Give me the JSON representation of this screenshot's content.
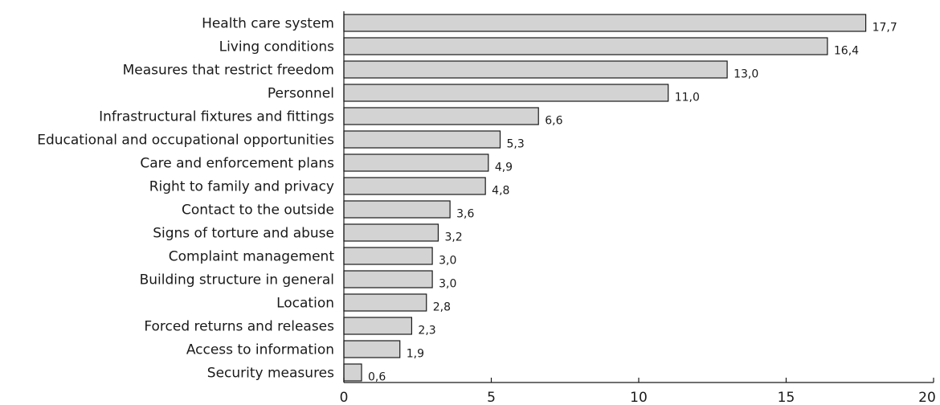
{
  "chart_data": {
    "type": "bar",
    "orientation": "horizontal",
    "categories": [
      "Health care system",
      "Living conditions",
      "Measures that restrict freedom",
      "Personnel",
      "Infrastructural fixtures and fittings",
      "Educational and occupational opportunities",
      "Care and enforcement plans",
      "Right to family and privacy",
      "Contact to the outside",
      "Signs of torture and abuse",
      "Complaint management",
      "Building structure in general",
      "Location",
      "Forced returns and releases",
      "Access to information",
      "Security measures"
    ],
    "values": [
      17.7,
      16.4,
      13.0,
      11.0,
      6.6,
      5.3,
      4.9,
      4.8,
      3.6,
      3.2,
      3.0,
      3.0,
      2.8,
      2.3,
      1.9,
      0.6
    ],
    "value_labels": [
      "17,7",
      "16,4",
      "13,0",
      "11,0",
      "6,6",
      "5,3",
      "4,9",
      "4,8",
      "3,6",
      "3,2",
      "3,0",
      "3,0",
      "2,8",
      "2,3",
      "1,9",
      "0,6"
    ],
    "xticks": [
      0,
      5,
      10,
      15,
      20
    ],
    "xtick_labels": [
      "0",
      "5",
      "10",
      "15",
      "20"
    ],
    "xlim": [
      0,
      20
    ],
    "title": "",
    "xlabel": "",
    "ylabel": "",
    "grid": false,
    "bar_color": "#d3d3d3",
    "edge_color": "#1a1a1a"
  }
}
